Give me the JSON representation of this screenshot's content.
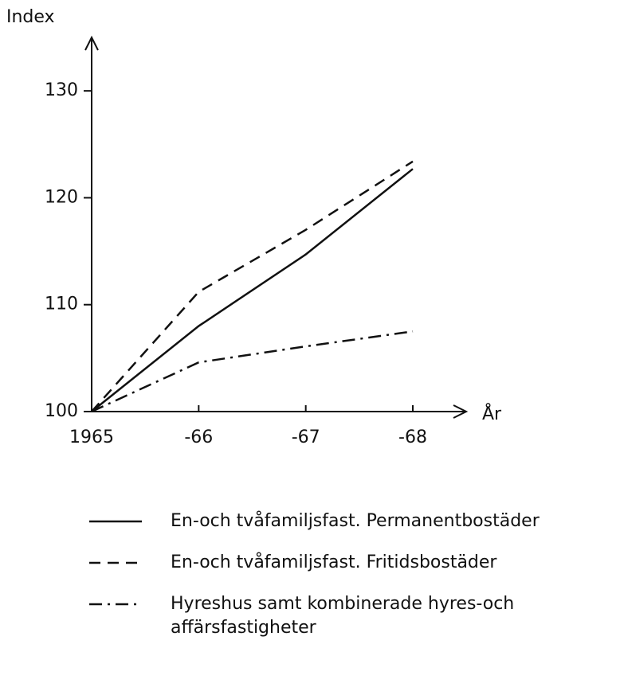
{
  "chart_data": {
    "type": "line",
    "y_label": "Index",
    "x_label": "År",
    "categories": [
      "1965",
      "-66",
      "-67",
      "-68"
    ],
    "ylim": [
      100,
      135
    ],
    "yticks": [
      100,
      110,
      120,
      130
    ],
    "series": [
      {
        "name": "En-och tvåfamiljsfast. Permanentbostäder",
        "color": "#111111",
        "style": "solid",
        "values": [
          100,
          108,
          114.7,
          122.7
        ]
      },
      {
        "name": "En-och tvåfamiljsfast. Fritidsbostäder",
        "color": "#111111",
        "style": "dashed",
        "values": [
          100,
          111.2,
          117,
          123.4
        ]
      },
      {
        "name": "Hyreshus samt kombinerade hyres-och affärsfastigheter",
        "color": "#111111",
        "style": "dashdot",
        "values": [
          100,
          104.6,
          106.1,
          107.5
        ]
      }
    ]
  }
}
